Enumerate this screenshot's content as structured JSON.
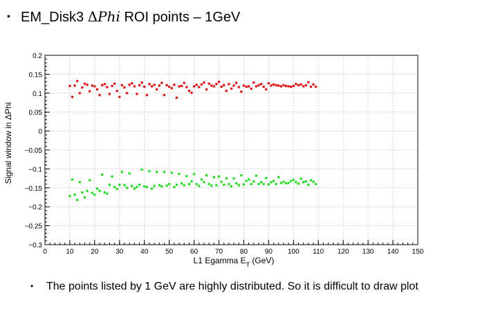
{
  "slide": {
    "title_bullet": "•",
    "title_prefix": "EM_Disk3 ",
    "title_symbol": "Δ",
    "title_symbol_italic": "Phi",
    "title_suffix": " ROI points – 1GeV",
    "note_bullet": "•",
    "note_text": "The points listed by 1 GeV are highly distributed. So it is difficult to draw plot"
  },
  "chart_data": {
    "type": "scatter",
    "xlabel": "L1 Egamma E_T (GeV)",
    "ylabel": "Signal window in ΔPhi",
    "xlim": [
      0,
      150
    ],
    "ylim": [
      -0.3,
      0.2
    ],
    "x_ticks": [
      "0",
      "10",
      "20",
      "30",
      "40",
      "50",
      "60",
      "70",
      "80",
      "90",
      "100",
      "110",
      "120",
      "130",
      "140",
      "150"
    ],
    "y_ticks": [
      "0.2",
      "0.15",
      "0.1",
      "0.05",
      "0",
      "−0.05",
      "−0.1",
      "−0.15",
      "−0.2",
      "−0.25",
      "−0.3"
    ],
    "grid": true,
    "series": [
      {
        "color": "#dd1111",
        "x": [
          10,
          11,
          12,
          13,
          14,
          15,
          16,
          17,
          18,
          19,
          20,
          21,
          22,
          23,
          24,
          25,
          26,
          27,
          28,
          29,
          30,
          31,
          32,
          33,
          34,
          35,
          36,
          37,
          38,
          39,
          40,
          41,
          42,
          43,
          44,
          45,
          46,
          47,
          48,
          49,
          50,
          51,
          52,
          53,
          54,
          55,
          56,
          57,
          58,
          59,
          60,
          61,
          62,
          63,
          64,
          65,
          66,
          67,
          68,
          69,
          70,
          71,
          72,
          73,
          74,
          75,
          76,
          77,
          78,
          79,
          80,
          81,
          82,
          83,
          84,
          85,
          86,
          87,
          88,
          89,
          90,
          91,
          92,
          93,
          94,
          95,
          96,
          97,
          98,
          99,
          100,
          101,
          102,
          103,
          104,
          105,
          106,
          107,
          108,
          109
        ],
        "y": [
          0.119,
          0.09,
          0.12,
          0.132,
          0.1,
          0.115,
          0.125,
          0.122,
          0.105,
          0.12,
          0.118,
          0.11,
          0.095,
          0.121,
          0.124,
          0.116,
          0.098,
          0.119,
          0.125,
          0.106,
          0.09,
          0.121,
          0.115,
          0.1,
          0.122,
          0.126,
          0.118,
          0.098,
          0.121,
          0.128,
          0.117,
          0.095,
          0.124,
          0.118,
          0.122,
          0.11,
          0.12,
          0.127,
          0.095,
          0.121,
          0.117,
          0.113,
          0.122,
          0.088,
          0.118,
          0.119,
          0.127,
          0.116,
          0.106,
          0.101,
          0.118,
          0.122,
          0.116,
          0.123,
          0.128,
          0.11,
          0.125,
          0.12,
          0.118,
          0.124,
          0.13,
          0.117,
          0.121,
          0.106,
          0.124,
          0.112,
          0.12,
          0.127,
          0.116,
          0.104,
          0.12,
          0.117,
          0.118,
          0.112,
          0.128,
          0.118,
          0.121,
          0.124,
          0.117,
          0.11,
          0.126,
          0.12,
          0.123,
          0.121,
          0.12,
          0.118,
          0.121,
          0.119,
          0.118,
          0.117,
          0.119,
          0.124,
          0.121,
          0.123,
          0.118,
          0.121,
          0.129,
          0.117,
          0.123,
          0.117
        ]
      },
      {
        "color": "#22dd22",
        "x": [
          10,
          11,
          12,
          13,
          14,
          15,
          16,
          17,
          18,
          19,
          20,
          21,
          22,
          23,
          24,
          25,
          26,
          27,
          28,
          29,
          30,
          31,
          32,
          33,
          34,
          35,
          36,
          37,
          38,
          39,
          40,
          41,
          42,
          43,
          44,
          45,
          46,
          47,
          48,
          49,
          50,
          51,
          52,
          53,
          54,
          55,
          56,
          57,
          58,
          59,
          60,
          61,
          62,
          63,
          64,
          65,
          66,
          67,
          68,
          69,
          70,
          71,
          72,
          73,
          74,
          75,
          76,
          77,
          78,
          79,
          80,
          81,
          82,
          83,
          84,
          85,
          86,
          87,
          88,
          89,
          90,
          91,
          92,
          93,
          94,
          95,
          96,
          97,
          98,
          99,
          100,
          101,
          102,
          103,
          104,
          105,
          106,
          107,
          108,
          109
        ],
        "y": [
          -0.172,
          -0.128,
          -0.168,
          -0.182,
          -0.135,
          -0.162,
          -0.175,
          -0.158,
          -0.13,
          -0.163,
          -0.168,
          -0.152,
          -0.158,
          -0.115,
          -0.162,
          -0.165,
          -0.142,
          -0.12,
          -0.148,
          -0.153,
          -0.142,
          -0.108,
          -0.143,
          -0.15,
          -0.112,
          -0.145,
          -0.152,
          -0.148,
          -0.142,
          -0.102,
          -0.146,
          -0.148,
          -0.106,
          -0.152,
          -0.145,
          -0.108,
          -0.143,
          -0.146,
          -0.108,
          -0.144,
          -0.14,
          -0.11,
          -0.148,
          -0.142,
          -0.113,
          -0.138,
          -0.143,
          -0.119,
          -0.14,
          -0.133,
          -0.114,
          -0.14,
          -0.145,
          -0.128,
          -0.135,
          -0.117,
          -0.14,
          -0.144,
          -0.122,
          -0.143,
          -0.12,
          -0.134,
          -0.142,
          -0.125,
          -0.14,
          -0.146,
          -0.125,
          -0.138,
          -0.143,
          -0.117,
          -0.141,
          -0.132,
          -0.128,
          -0.14,
          -0.133,
          -0.118,
          -0.14,
          -0.135,
          -0.14,
          -0.124,
          -0.141,
          -0.135,
          -0.132,
          -0.14,
          -0.122,
          -0.137,
          -0.134,
          -0.138,
          -0.137,
          -0.132,
          -0.129,
          -0.135,
          -0.139,
          -0.126,
          -0.135,
          -0.133,
          -0.142,
          -0.13,
          -0.134,
          -0.14
        ]
      }
    ]
  }
}
